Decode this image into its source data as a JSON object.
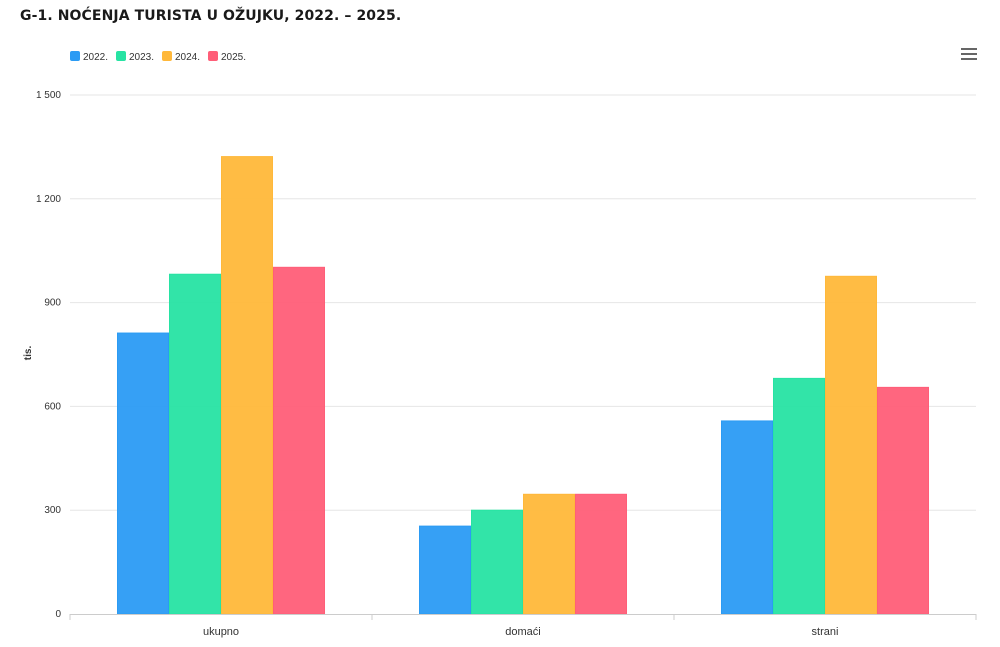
{
  "chart_data": {
    "type": "bar",
    "title": "G-1. NOĆENJA TURISTA U OŽUJKU, 2022. – 2025.",
    "ylabel": "tis.",
    "xlabel": "",
    "categories": [
      "ukupno",
      "domaći",
      "strani"
    ],
    "series": [
      {
        "name": "2022.",
        "color": "#2b9bf4",
        "values": [
          812,
          254,
          558
        ]
      },
      {
        "name": "2023.",
        "color": "#27e3a3",
        "values": [
          982,
          300,
          681
        ]
      },
      {
        "name": "2024.",
        "color": "#ffb83a",
        "values": [
          1322,
          346,
          976
        ]
      },
      {
        "name": "2025.",
        "color": "#ff5e78",
        "values": [
          1002,
          346,
          655
        ]
      }
    ],
    "ylim": [
      0,
      1500
    ],
    "yticks": [
      0,
      300,
      600,
      900,
      1200,
      1500
    ],
    "ytick_labels": [
      "0",
      "300",
      "600",
      "900",
      "1 200",
      "1 500"
    ],
    "grid": true,
    "legend_position": "top-left"
  },
  "menu_icon": "hamburger-menu-icon"
}
